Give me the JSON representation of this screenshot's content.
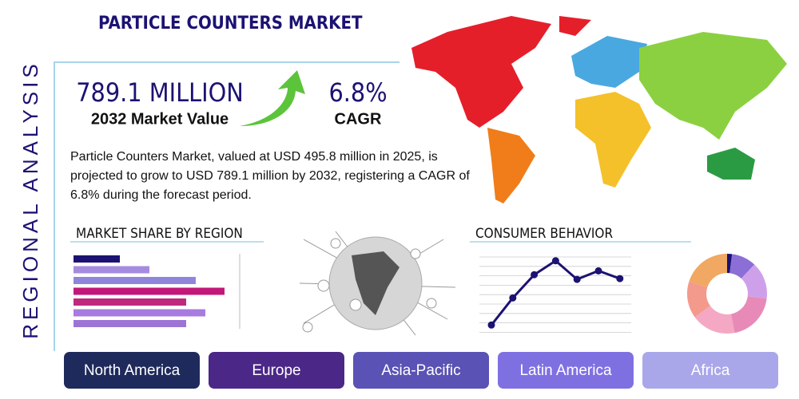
{
  "title": "PARTICLE COUNTERS MARKET",
  "side_label": "REGIONAL ANALYSIS",
  "stats": [
    {
      "value": "789.1 MILLION",
      "label": "2032 Market Value"
    },
    {
      "value": "6.8%",
      "label": "CAGR"
    }
  ],
  "description": "Particle Counters Market, valued at USD 495.8 million in 2025, is projected to grow to USD 789.1 million by 2032, registering a CAGR of 6.8% during the forecast period.",
  "charts": [
    {
      "type": "bar",
      "title": "MARKET SHARE BY REGION",
      "xlim": [
        0,
        208
      ],
      "values": [
        58,
        95,
        153,
        189,
        141,
        165,
        141
      ],
      "colors": [
        "#1c1273",
        "#a58be0",
        "#8f86dc",
        "#c2187a",
        "#c0287e",
        "#a77be0",
        "#9d74d6"
      ]
    },
    {
      "type": "line",
      "title": "CONSUMER BEHAVIOR",
      "ylim": [
        0,
        100
      ],
      "color": "#1c1273",
      "values": [
        10,
        45,
        75,
        93,
        69,
        80,
        70
      ]
    },
    {
      "type": "donut",
      "values": [
        2,
        10,
        15,
        20,
        18,
        15,
        20
      ],
      "colors": [
        "#1c1273",
        "#8b6fd6",
        "#cfa0ea",
        "#e88ab8",
        "#f4a8c4",
        "#f39a8c",
        "#f0a862"
      ]
    }
  ],
  "regions": [
    {
      "label": "North America",
      "color": "#1f2a5c"
    },
    {
      "label": "Europe",
      "color": "#4b2788"
    },
    {
      "label": "Asia-Pacific",
      "color": "#5a52b4"
    },
    {
      "label": "Latin America",
      "color": "#7f70e2"
    },
    {
      "label": "Africa",
      "color": "#a9a7ea"
    }
  ]
}
